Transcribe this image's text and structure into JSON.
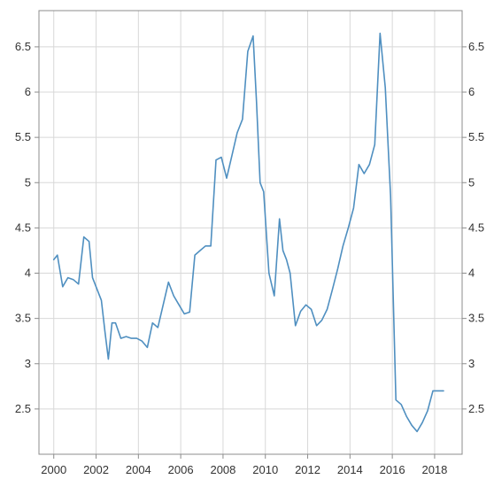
{
  "chart_data": {
    "type": "line",
    "title": "",
    "xlabel": "",
    "ylabel": "",
    "xlim": [
      1999.3,
      2019.3
    ],
    "ylim": [
      2.0,
      6.9
    ],
    "grid": true,
    "legend": "none",
    "colors": {
      "line": "#4f8fc0",
      "grid": "#d8d8d8",
      "frame": "#8c8c8c",
      "text": "#333333"
    },
    "x_ticks": [
      {
        "value": 2000,
        "label": "2000"
      },
      {
        "value": 2002,
        "label": "2002"
      },
      {
        "value": 2004,
        "label": "2004"
      },
      {
        "value": 2006,
        "label": "2006"
      },
      {
        "value": 2008,
        "label": "2008"
      },
      {
        "value": 2010,
        "label": "2010"
      },
      {
        "value": 2012,
        "label": "2012"
      },
      {
        "value": 2014,
        "label": "2014"
      },
      {
        "value": 2016,
        "label": "2016"
      },
      {
        "value": 2018,
        "label": "2018"
      }
    ],
    "y_ticks": [
      {
        "value": 2.5,
        "label": "2.5"
      },
      {
        "value": 3,
        "label": "3"
      },
      {
        "value": 3.5,
        "label": "3.5"
      },
      {
        "value": 4,
        "label": "4"
      },
      {
        "value": 4.5,
        "label": "4.5"
      },
      {
        "value": 5,
        "label": "5"
      },
      {
        "value": 5.5,
        "label": "5.5"
      },
      {
        "value": 6,
        "label": "6"
      },
      {
        "value": 6.5,
        "label": "6.5"
      }
    ],
    "series": [
      {
        "x": [
          2000.0,
          2000.17,
          2000.42,
          2000.67,
          2000.92,
          2001.17,
          2001.42,
          2001.67,
          2001.83,
          2002.0,
          2002.25,
          2002.42,
          2002.58,
          2002.75,
          2002.92,
          2003.17,
          2003.42,
          2003.67,
          2003.92,
          2004.17,
          2004.42,
          2004.67,
          2004.92,
          2005.17,
          2005.42,
          2005.67,
          2005.92,
          2006.17,
          2006.42,
          2006.67,
          2006.92,
          2007.17,
          2007.42,
          2007.67,
          2007.92,
          2008.17,
          2008.42,
          2008.67,
          2008.92,
          2009.17,
          2009.42,
          2009.58,
          2009.75,
          2009.92,
          2010.17,
          2010.42,
          2010.67,
          2010.83,
          2011.0,
          2011.17,
          2011.42,
          2011.67,
          2011.92,
          2012.17,
          2012.42,
          2012.67,
          2012.92,
          2013.17,
          2013.42,
          2013.67,
          2013.92,
          2014.17,
          2014.42,
          2014.67,
          2014.92,
          2015.17,
          2015.42,
          2015.67,
          2015.92,
          2016.17,
          2016.42,
          2016.67,
          2016.92,
          2017.17,
          2017.42,
          2017.67,
          2017.92,
          2018.17,
          2018.42
        ],
        "values": [
          4.15,
          4.2,
          3.85,
          3.95,
          3.93,
          3.88,
          4.4,
          4.35,
          3.95,
          3.85,
          3.7,
          3.35,
          3.05,
          3.45,
          3.45,
          3.28,
          3.3,
          3.28,
          3.28,
          3.25,
          3.18,
          3.45,
          3.4,
          3.65,
          3.9,
          3.75,
          3.65,
          3.55,
          3.57,
          4.2,
          4.25,
          4.3,
          4.3,
          5.25,
          5.28,
          5.05,
          5.3,
          5.55,
          5.7,
          6.45,
          6.62,
          5.9,
          5.0,
          4.9,
          4.0,
          3.75,
          4.6,
          4.25,
          4.15,
          4.0,
          3.42,
          3.58,
          3.65,
          3.6,
          3.42,
          3.48,
          3.6,
          3.82,
          4.05,
          4.3,
          4.5,
          4.72,
          5.2,
          5.1,
          5.2,
          5.42,
          6.65,
          6.05,
          4.85,
          2.6,
          2.55,
          2.42,
          2.32,
          2.25,
          2.35,
          2.48,
          2.7,
          2.7,
          2.7
        ]
      }
    ]
  }
}
